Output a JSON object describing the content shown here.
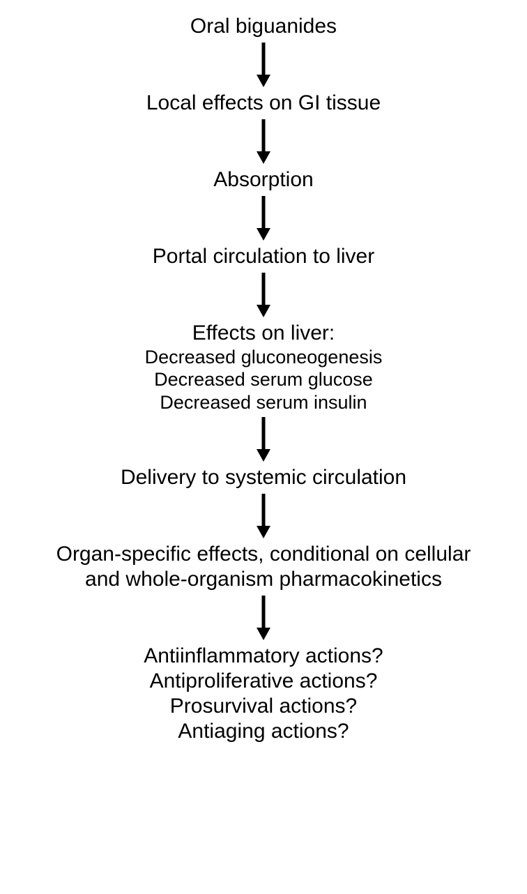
{
  "flowchart": {
    "type": "flowchart",
    "background_color": "#ffffff",
    "text_color": "#000000",
    "arrow_color": "#000000",
    "font_family": "Helvetica, Arial, sans-serif",
    "title_fontsize": 30,
    "sub_fontsize": 27,
    "arrow": {
      "length": 48,
      "stroke_width": 5,
      "head_width": 20,
      "head_height": 16
    },
    "nodes": [
      {
        "id": "oral-biguanides",
        "lines": [
          {
            "text": "Oral biguanides",
            "style": "title"
          }
        ]
      },
      {
        "id": "local-effects",
        "lines": [
          {
            "text": "Local effects on GI tissue",
            "style": "title"
          }
        ]
      },
      {
        "id": "absorption",
        "lines": [
          {
            "text": "Absorption",
            "style": "title"
          }
        ]
      },
      {
        "id": "portal-circulation",
        "lines": [
          {
            "text": "Portal circulation to liver",
            "style": "title"
          }
        ]
      },
      {
        "id": "effects-on-liver",
        "lines": [
          {
            "text": "Effects on liver:",
            "style": "title"
          },
          {
            "text": "Decreased gluconeogenesis",
            "style": "sub"
          },
          {
            "text": "Decreased serum glucose",
            "style": "sub"
          },
          {
            "text": "Decreased serum insulin",
            "style": "sub"
          }
        ]
      },
      {
        "id": "delivery-systemic",
        "lines": [
          {
            "text": "Delivery to systemic circulation",
            "style": "title"
          }
        ]
      },
      {
        "id": "organ-specific",
        "lines": [
          {
            "text": "Organ-specific effects, conditional on cellular",
            "style": "title"
          },
          {
            "text": "and whole-organism pharmacokinetics",
            "style": "title"
          }
        ]
      },
      {
        "id": "actions",
        "lines": [
          {
            "text": "Antiinflammatory actions?",
            "style": "title"
          },
          {
            "text": "Antiproliferative actions?",
            "style": "title"
          },
          {
            "text": "Prosurvival actions?",
            "style": "title"
          },
          {
            "text": "Antiaging actions?",
            "style": "title"
          }
        ]
      }
    ]
  }
}
